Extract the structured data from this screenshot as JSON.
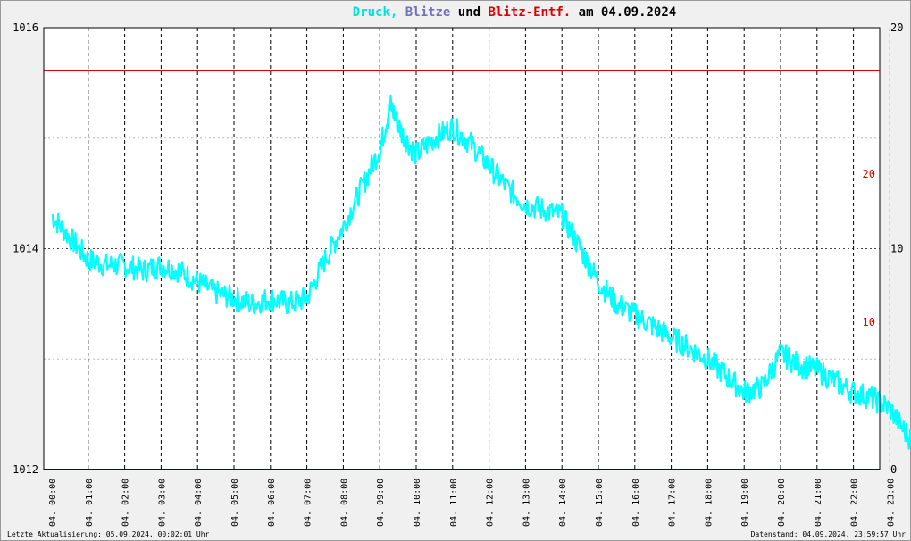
{
  "chart_data": {
    "type": "line",
    "title_parts": [
      {
        "text": "Druck,",
        "color": "#00e0e0"
      },
      {
        "text": "Blitze",
        "color": "#7070c0"
      },
      {
        "text": "und",
        "color": "#000000"
      },
      {
        "text": "Blitz-Entf.",
        "color": "#e00000"
      },
      {
        "text": "am 04.09.2024",
        "color": "#000000"
      }
    ],
    "x_labels": [
      "04. 00:00",
      "04. 01:00",
      "04. 02:00",
      "04. 03:00",
      "04. 04:00",
      "04. 05:00",
      "04. 06:00",
      "04. 07:00",
      "04. 08:00",
      "04. 09:00",
      "04. 10:00",
      "04. 11:00",
      "04. 12:00",
      "04. 13:00",
      "04. 14:00",
      "04. 15:00",
      "04. 16:00",
      "04. 17:00",
      "04. 18:00",
      "04. 19:00",
      "04. 20:00",
      "04. 21:00",
      "04. 22:00",
      "04. 23:00"
    ],
    "left_axis": {
      "ticks": [
        "1016",
        "1014",
        "1012"
      ],
      "ylim": [
        1012,
        1016
      ]
    },
    "right_axis": {
      "black_ticks": [
        {
          "label": "20",
          "value": 20
        },
        {
          "label": "10",
          "value": 10
        },
        {
          "label": "0",
          "value": 0
        }
      ],
      "red_ticks": [
        {
          "label": "20",
          "value": 20
        },
        {
          "label": "10",
          "value": 10
        }
      ],
      "ylim": [
        0,
        20
      ]
    },
    "series": [
      {
        "color": "#00ffff",
        "x_hours": [
          0,
          0.5,
          1,
          1.5,
          2,
          2.5,
          3,
          3.5,
          4,
          4.5,
          5,
          5.5,
          6,
          6.5,
          7,
          7.5,
          8,
          8.5,
          9,
          9.3,
          9.6,
          10,
          10.5,
          11,
          11.5,
          12,
          12.5,
          13,
          13.5,
          14,
          14.5,
          15,
          15.5,
          16,
          16.5,
          17,
          17.5,
          18,
          18.5,
          19,
          19.5,
          20,
          20.5,
          21,
          21.5,
          22,
          22.5,
          23,
          23.5,
          23.9
        ],
        "values": [
          1014.3,
          1014.1,
          1013.9,
          1013.85,
          1013.85,
          1013.8,
          1013.85,
          1013.8,
          1013.7,
          1013.6,
          1013.55,
          1013.5,
          1013.55,
          1013.5,
          1013.55,
          1013.9,
          1014.2,
          1014.55,
          1014.9,
          1015.3,
          1015.05,
          1014.85,
          1015.0,
          1015.1,
          1014.95,
          1014.75,
          1014.55,
          1014.4,
          1014.35,
          1014.3,
          1014.0,
          1013.7,
          1013.5,
          1013.4,
          1013.3,
          1013.2,
          1013.1,
          1013.0,
          1012.85,
          1012.7,
          1012.75,
          1013.05,
          1012.95,
          1012.9,
          1012.8,
          1012.7,
          1012.65,
          1012.55,
          1012.3,
          1012.25
        ]
      },
      {
        "color": "#e00000",
        "axis": "right",
        "x_hours": [
          0,
          23.9
        ],
        "values": [
          18,
          18
        ]
      },
      {
        "color": "#202080",
        "axis": "right",
        "x_hours": [
          0,
          23.9
        ],
        "values": [
          0,
          0
        ]
      }
    ]
  },
  "footer": {
    "left": "Letzte Aktualisierung: 05.09.2024, 00:02:01 Uhr",
    "right": "Datenstand: 04.09.2024, 23:59:57 Uhr"
  }
}
